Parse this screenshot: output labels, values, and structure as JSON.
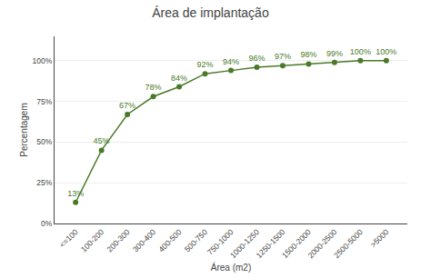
{
  "chart_data": {
    "type": "line",
    "title": "Área de implantação",
    "xlabel": "Área (m2)",
    "ylabel": "Percentagem",
    "categories": [
      "<=100",
      "100-200",
      "200-300",
      "300-400",
      "400-500",
      "500-750",
      "750-1000",
      "1000-1250",
      "1250-1500",
      "1500-2000",
      "2000-2500",
      "2500-5000",
      ">5000"
    ],
    "values": [
      13,
      45,
      67,
      78,
      84,
      92,
      94,
      96,
      97,
      98,
      99,
      100,
      100
    ],
    "value_labels": [
      "13%",
      "45%",
      "67%",
      "78%",
      "84%",
      "92%",
      "94%",
      "96%",
      "97%",
      "98%",
      "99%",
      "100%",
      "100%"
    ],
    "data_labels": true,
    "color": "#4a7a28",
    "marker": "circle",
    "ylim": [
      0,
      115
    ],
    "yticks": [
      {
        "value": 0,
        "label": "0%"
      },
      {
        "value": 25,
        "label": "25%"
      },
      {
        "value": 50,
        "label": "50%"
      },
      {
        "value": 75,
        "label": "75%"
      },
      {
        "value": 100,
        "label": "100%"
      }
    ],
    "grid": true
  }
}
